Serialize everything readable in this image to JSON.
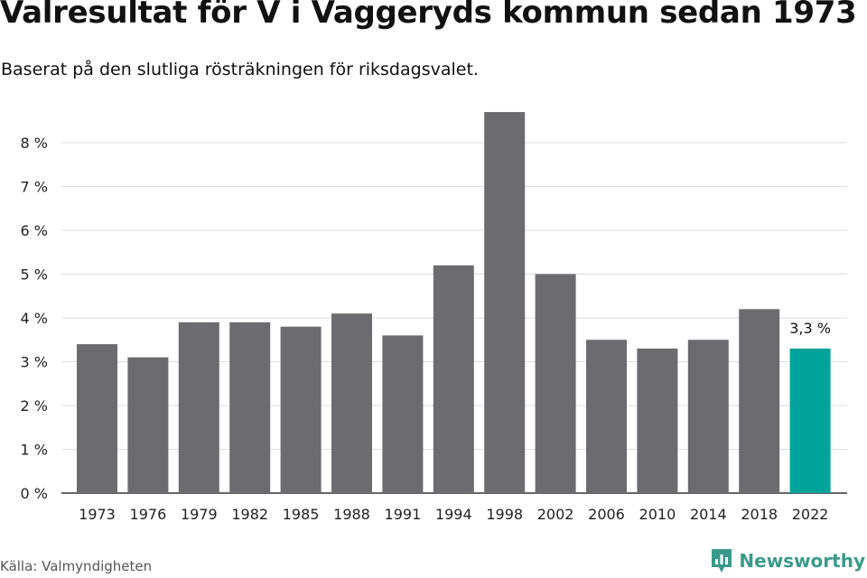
{
  "header": {
    "title": "Valresultat för V i Vaggeryds kommun sedan 1973",
    "subtitle": "Baserat på den slutliga rösträkningen för riksdagsvalet."
  },
  "chart_data": {
    "type": "bar",
    "title": "Valresultat för V i Vaggeryds kommun sedan 1973",
    "subtitle": "Baserat på den slutliga rösträkningen för riksdagsvalet.",
    "xlabel": "",
    "ylabel": "",
    "categories": [
      "1973",
      "1976",
      "1979",
      "1982",
      "1985",
      "1988",
      "1991",
      "1994",
      "1998",
      "2002",
      "2006",
      "2010",
      "2014",
      "2018",
      "2022"
    ],
    "values": [
      3.4,
      3.1,
      3.9,
      3.9,
      3.8,
      4.1,
      3.6,
      5.2,
      8.7,
      5.0,
      3.5,
      3.3,
      3.5,
      4.2,
      3.3
    ],
    "ylim": [
      0,
      8.9
    ],
    "yticks": [
      0,
      1,
      2,
      3,
      4,
      5,
      6,
      7,
      8
    ],
    "ytick_labels": [
      "0 %",
      "1 %",
      "2 %",
      "3 %",
      "4 %",
      "5 %",
      "6 %",
      "7 %",
      "8 %"
    ],
    "grid": true,
    "highlight": {
      "category": "2022",
      "label": "3,3 %"
    },
    "colors": {
      "bar": "#6c6b70",
      "highlight": "#00a39a",
      "grid": "#dddddd",
      "axis": "#333333"
    }
  },
  "footer": {
    "source": "Källa: Valmyndigheten",
    "brand": "Newsworthy",
    "brand_icon": "newsworthy-logo-icon"
  }
}
